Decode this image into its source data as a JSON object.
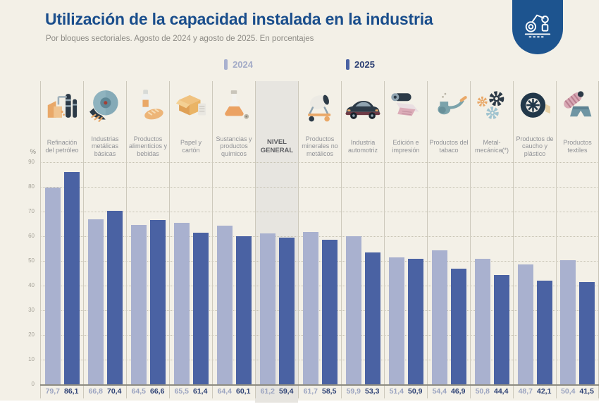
{
  "header": {
    "title": "Utilización de la capacidad instalada en la industria",
    "subtitle": "Por bloques sectoriales. Agosto de 2024 y agosto de 2025. En porcentajes",
    "logo_icon": "robot-arm-icon"
  },
  "legend": {
    "items": [
      {
        "label": "2024",
        "color": "#a9b1cf"
      },
      {
        "label": "2025",
        "color": "#4a62a3"
      }
    ]
  },
  "chart_data": {
    "type": "bar",
    "title": "Utilización de la capacidad instalada en la industria",
    "subtitle": "Por bloques sectoriales. Agosto de 2024 y agosto de 2025. En porcentajes",
    "xlabel": "",
    "ylabel": "%",
    "ylim": [
      0,
      90
    ],
    "yticks": [
      0,
      10,
      20,
      30,
      40,
      50,
      60,
      70,
      80,
      90
    ],
    "grid": "horizontal-dotted",
    "legend_position": "top-center",
    "categories": [
      "Refinación del petróleo",
      "Industrias metálicas básicas",
      "Productos alimenticios y bebidas",
      "Papel y cartón",
      "Sustancias y productos químicos",
      "NIVEL GENERAL",
      "Productos minerales no metálicos",
      "Industria automotriz",
      "Edición e impresión",
      "Productos del tabaco",
      "Metal-mecánica(*)",
      "Productos de caucho y plástico",
      "Productos textiles"
    ],
    "category_icons": [
      "refinery-icon",
      "metal-disc-icon",
      "food-beverage-icon",
      "paper-box-icon",
      "chemical-flask-icon",
      null,
      "cement-mixer-icon",
      "car-icon",
      "printing-icon",
      "tobacco-pipe-icon",
      "gears-icon",
      "tire-icon",
      "textile-icon"
    ],
    "highlight_index": 5,
    "series": [
      {
        "name": "2024",
        "color": "#a9b1cf",
        "values": [
          79.7,
          66.8,
          64.5,
          65.5,
          64.4,
          61.2,
          61.7,
          59.9,
          51.4,
          54.4,
          50.8,
          48.7,
          50.4
        ]
      },
      {
        "name": "2025",
        "color": "#4a62a3",
        "values": [
          86.1,
          70.4,
          66.6,
          61.4,
          60.1,
          59.4,
          58.5,
          53.3,
          50.9,
          46.9,
          44.4,
          42.1,
          41.5
        ]
      }
    ],
    "value_label_format": "comma-decimal"
  },
  "colors": {
    "background": "#f3f0e7",
    "title": "#1a4e8c",
    "badge": "#1d548f",
    "bar_2024": "#a9b1cf",
    "bar_2025": "#4a62a3",
    "highlight_band": "#e7e5e0"
  }
}
